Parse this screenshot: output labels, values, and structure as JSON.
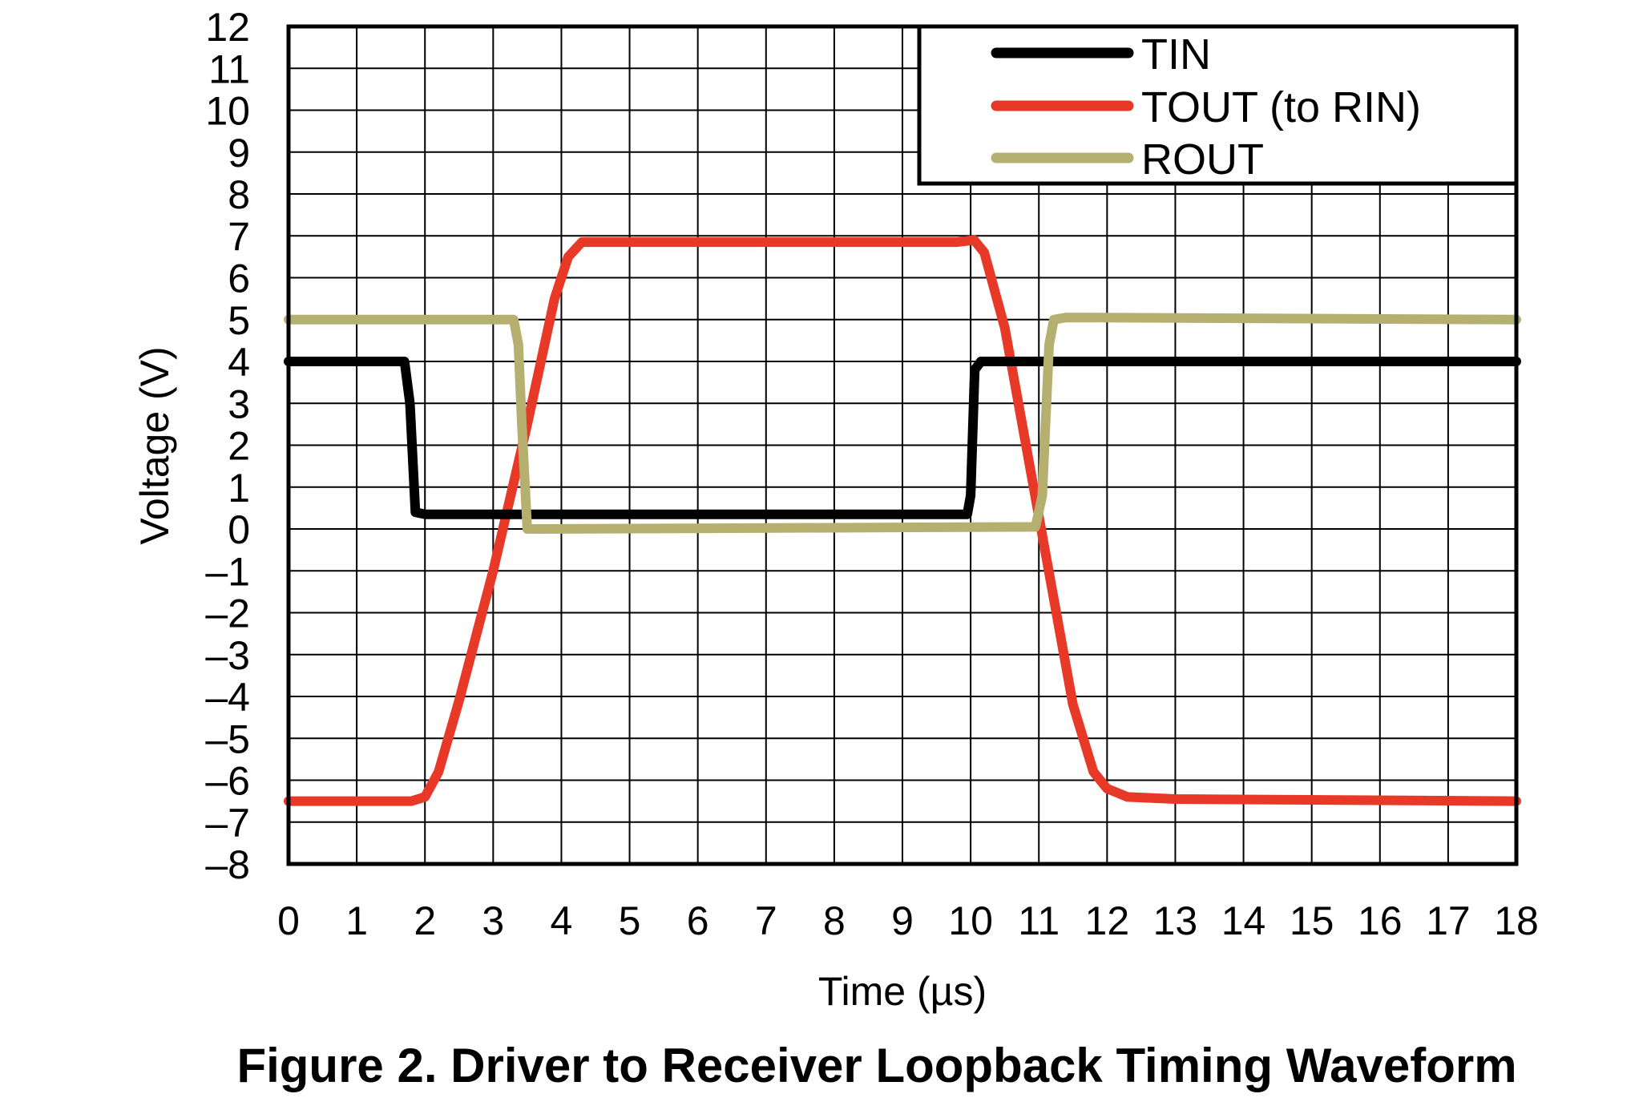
{
  "figure_caption": "Figure 2. Driver to Receiver Loopback Timing Waveform",
  "chart_data": {
    "type": "line",
    "title": "",
    "xlabel": "Time (µs)",
    "ylabel": "Voltage (V)",
    "xlim": [
      0,
      18
    ],
    "ylim": [
      -8,
      12
    ],
    "grid": true,
    "legend_position": "top-right",
    "x_ticks": [
      "0",
      "1",
      "2",
      "3",
      "4",
      "5",
      "6",
      "7",
      "8",
      "9",
      "10",
      "11",
      "12",
      "13",
      "14",
      "15",
      "16",
      "17",
      "18"
    ],
    "y_ticks": [
      "12",
      "11",
      "10",
      "9",
      "8",
      "7",
      "6",
      "5",
      "4",
      "3",
      "2",
      "1",
      "0",
      "–1",
      "–2",
      "–3",
      "–4",
      "–5",
      "–6",
      "–7",
      "–8"
    ],
    "series": [
      {
        "name": "TIN",
        "color": "#000000",
        "x": [
          0,
          1.7,
          1.78,
          1.86,
          2.0,
          9.95,
          10.0,
          10.06,
          10.15,
          18
        ],
        "y": [
          4.0,
          4.0,
          3.0,
          0.4,
          0.35,
          0.35,
          0.8,
          3.8,
          4.0,
          4.0
        ]
      },
      {
        "name": "TOUT (to RIN)",
        "color": "#e83828",
        "x": [
          0,
          1.8,
          2.0,
          2.2,
          2.5,
          3.0,
          3.5,
          3.9,
          4.1,
          4.3,
          4.6,
          9.8,
          10.05,
          10.2,
          10.5,
          11.0,
          11.5,
          11.8,
          12.0,
          12.3,
          13.0,
          18
        ],
        "y": [
          -6.5,
          -6.5,
          -6.4,
          -5.8,
          -4.1,
          -1.0,
          2.5,
          5.5,
          6.5,
          6.85,
          6.85,
          6.85,
          6.9,
          6.6,
          4.8,
          0.3,
          -4.2,
          -5.8,
          -6.2,
          -6.4,
          -6.45,
          -6.5
        ]
      },
      {
        "name": "ROUT",
        "color": "#b5b070",
        "x": [
          0,
          3.3,
          3.37,
          3.42,
          3.5,
          3.7,
          10.95,
          11.05,
          11.15,
          11.22,
          11.4,
          18
        ],
        "y": [
          5.0,
          5.0,
          4.4,
          2.5,
          0.0,
          0.0,
          0.05,
          0.8,
          4.4,
          5.0,
          5.05,
          5.0
        ]
      }
    ]
  }
}
